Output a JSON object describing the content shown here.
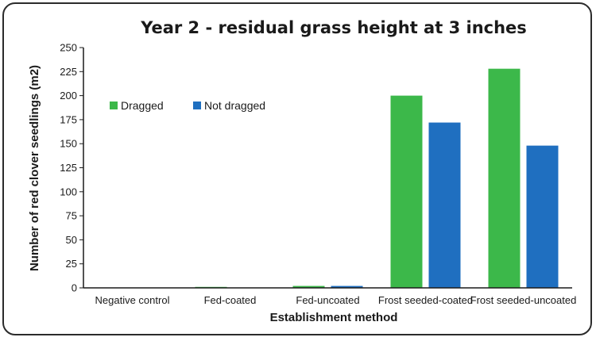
{
  "chart_data": {
    "type": "bar",
    "title": "Year 2 - residual grass height at 3 inches",
    "xlabel": "Establishment method",
    "ylabel": "Number of red clover seedlings (m2)",
    "categories": [
      "Negative control",
      "Fed-coated",
      "Fed-uncoated",
      "Frost seeded-coated",
      "Frost seeded-uncoated"
    ],
    "series": [
      {
        "name": "Dragged",
        "color": "#3cb84a",
        "values": [
          0,
          1,
          2,
          200,
          228
        ]
      },
      {
        "name": "Not dragged",
        "color": "#1f6fc0",
        "values": [
          0,
          0,
          2,
          172,
          148
        ]
      }
    ],
    "ylim": [
      0,
      250
    ],
    "yticks": [
      0,
      25,
      50,
      75,
      100,
      125,
      150,
      175,
      200,
      225,
      250
    ],
    "grid": false,
    "legend_position": "upper-left"
  }
}
